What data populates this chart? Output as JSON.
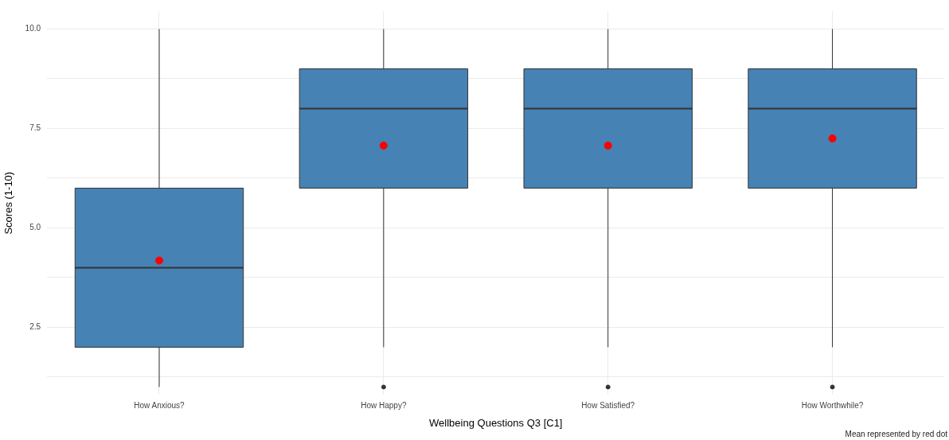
{
  "chart_data": {
    "type": "box",
    "xlabel": "Wellbeing Questions Q3 [C1]",
    "ylabel": "Scores (1-10)",
    "categories": [
      "How Anxious?",
      "How Happy?",
      "How Satisfied?",
      "How Worthwhile?"
    ],
    "color": "#4682b4",
    "boxes": [
      {
        "low": 1,
        "q1": 2,
        "median": 4,
        "q3": 6,
        "high": 10
      },
      {
        "low": 2,
        "q1": 6,
        "median": 8,
        "q3": 9,
        "high": 10,
        "outliers": [
          1
        ]
      },
      {
        "low": 2,
        "q1": 6,
        "median": 8,
        "q3": 9,
        "high": 10,
        "outliers": [
          1
        ]
      },
      {
        "low": 2,
        "q1": 6,
        "median": 8,
        "q3": 9,
        "high": 10,
        "outliers": [
          1
        ]
      }
    ],
    "series": [
      {
        "type": "scatter",
        "color": "#ff0000",
        "x": [
          "How Anxious?",
          "How Happy?",
          "How Satisfied?",
          "How Worthwhile?"
        ],
        "values": [
          4.18,
          7.07,
          7.07,
          7.25
        ]
      }
    ],
    "ylim": [
      0.8,
      10.45
    ],
    "yticks": [
      {
        "value": 1.25,
        "label": null
      },
      2.5,
      {
        "value": 3.75,
        "label": null
      },
      {
        "value": 5,
        "label": "5.0"
      },
      {
        "value": 6.25,
        "label": null
      },
      7.5,
      {
        "value": 8.75,
        "label": null
      },
      {
        "value": 10,
        "label": "10.0"
      }
    ],
    "grid": true,
    "legend": false,
    "annotations": [
      "Mean represented by red dot"
    ]
  }
}
